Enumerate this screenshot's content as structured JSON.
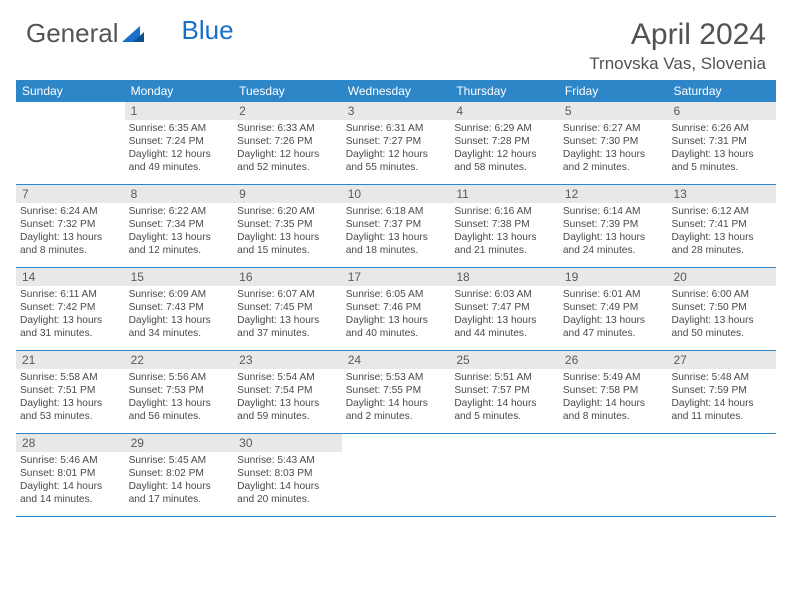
{
  "logo": {
    "text1": "General",
    "text2": "Blue"
  },
  "title": "April 2024",
  "location": "Trnovska Vas, Slovenia",
  "colors": {
    "header_bg": "#2d86c8",
    "header_text": "#ffffff",
    "daynum_bg": "#e8e8e8",
    "text": "#4a4a4a",
    "rule": "#2d86c8",
    "logo_blue": "#1a6fc9"
  },
  "typography": {
    "title_fontsize": 30,
    "location_fontsize": 17,
    "dayhead_fontsize": 12,
    "daynum_fontsize": 12,
    "details_fontsize": 10.2
  },
  "dayNames": [
    "Sunday",
    "Monday",
    "Tuesday",
    "Wednesday",
    "Thursday",
    "Friday",
    "Saturday"
  ],
  "weeks": [
    [
      null,
      {
        "n": "1",
        "sr": "6:35 AM",
        "ss": "7:24 PM",
        "dl": "12 hours and 49 minutes."
      },
      {
        "n": "2",
        "sr": "6:33 AM",
        "ss": "7:26 PM",
        "dl": "12 hours and 52 minutes."
      },
      {
        "n": "3",
        "sr": "6:31 AM",
        "ss": "7:27 PM",
        "dl": "12 hours and 55 minutes."
      },
      {
        "n": "4",
        "sr": "6:29 AM",
        "ss": "7:28 PM",
        "dl": "12 hours and 58 minutes."
      },
      {
        "n": "5",
        "sr": "6:27 AM",
        "ss": "7:30 PM",
        "dl": "13 hours and 2 minutes."
      },
      {
        "n": "6",
        "sr": "6:26 AM",
        "ss": "7:31 PM",
        "dl": "13 hours and 5 minutes."
      }
    ],
    [
      {
        "n": "7",
        "sr": "6:24 AM",
        "ss": "7:32 PM",
        "dl": "13 hours and 8 minutes."
      },
      {
        "n": "8",
        "sr": "6:22 AM",
        "ss": "7:34 PM",
        "dl": "13 hours and 12 minutes."
      },
      {
        "n": "9",
        "sr": "6:20 AM",
        "ss": "7:35 PM",
        "dl": "13 hours and 15 minutes."
      },
      {
        "n": "10",
        "sr": "6:18 AM",
        "ss": "7:37 PM",
        "dl": "13 hours and 18 minutes."
      },
      {
        "n": "11",
        "sr": "6:16 AM",
        "ss": "7:38 PM",
        "dl": "13 hours and 21 minutes."
      },
      {
        "n": "12",
        "sr": "6:14 AM",
        "ss": "7:39 PM",
        "dl": "13 hours and 24 minutes."
      },
      {
        "n": "13",
        "sr": "6:12 AM",
        "ss": "7:41 PM",
        "dl": "13 hours and 28 minutes."
      }
    ],
    [
      {
        "n": "14",
        "sr": "6:11 AM",
        "ss": "7:42 PM",
        "dl": "13 hours and 31 minutes."
      },
      {
        "n": "15",
        "sr": "6:09 AM",
        "ss": "7:43 PM",
        "dl": "13 hours and 34 minutes."
      },
      {
        "n": "16",
        "sr": "6:07 AM",
        "ss": "7:45 PM",
        "dl": "13 hours and 37 minutes."
      },
      {
        "n": "17",
        "sr": "6:05 AM",
        "ss": "7:46 PM",
        "dl": "13 hours and 40 minutes."
      },
      {
        "n": "18",
        "sr": "6:03 AM",
        "ss": "7:47 PM",
        "dl": "13 hours and 44 minutes."
      },
      {
        "n": "19",
        "sr": "6:01 AM",
        "ss": "7:49 PM",
        "dl": "13 hours and 47 minutes."
      },
      {
        "n": "20",
        "sr": "6:00 AM",
        "ss": "7:50 PM",
        "dl": "13 hours and 50 minutes."
      }
    ],
    [
      {
        "n": "21",
        "sr": "5:58 AM",
        "ss": "7:51 PM",
        "dl": "13 hours and 53 minutes."
      },
      {
        "n": "22",
        "sr": "5:56 AM",
        "ss": "7:53 PM",
        "dl": "13 hours and 56 minutes."
      },
      {
        "n": "23",
        "sr": "5:54 AM",
        "ss": "7:54 PM",
        "dl": "13 hours and 59 minutes."
      },
      {
        "n": "24",
        "sr": "5:53 AM",
        "ss": "7:55 PM",
        "dl": "14 hours and 2 minutes."
      },
      {
        "n": "25",
        "sr": "5:51 AM",
        "ss": "7:57 PM",
        "dl": "14 hours and 5 minutes."
      },
      {
        "n": "26",
        "sr": "5:49 AM",
        "ss": "7:58 PM",
        "dl": "14 hours and 8 minutes."
      },
      {
        "n": "27",
        "sr": "5:48 AM",
        "ss": "7:59 PM",
        "dl": "14 hours and 11 minutes."
      }
    ],
    [
      {
        "n": "28",
        "sr": "5:46 AM",
        "ss": "8:01 PM",
        "dl": "14 hours and 14 minutes."
      },
      {
        "n": "29",
        "sr": "5:45 AM",
        "ss": "8:02 PM",
        "dl": "14 hours and 17 minutes."
      },
      {
        "n": "30",
        "sr": "5:43 AM",
        "ss": "8:03 PM",
        "dl": "14 hours and 20 minutes."
      },
      null,
      null,
      null,
      null
    ]
  ],
  "labels": {
    "sunrise": "Sunrise:",
    "sunset": "Sunset:",
    "daylight": "Daylight:"
  }
}
